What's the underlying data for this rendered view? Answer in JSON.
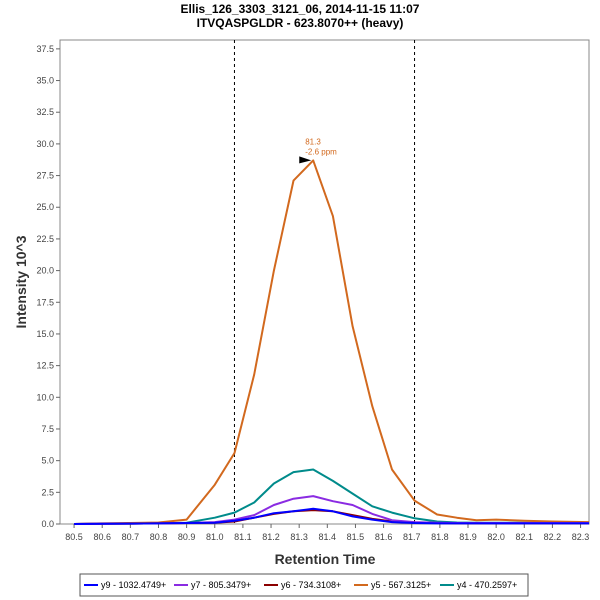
{
  "chart_data": {
    "type": "line",
    "title": "Ellis_126_3303_3121_06, 2014-11-15 11:07",
    "subtitle": "ITVQASPGLDR - 623.8070++ (heavy)",
    "xlabel": "Retention Time",
    "ylabel": "Intensity 10^3",
    "xlim": [
      80.45,
      82.33
    ],
    "ylim": [
      0,
      38.2
    ],
    "xticks": [
      "80.5",
      "80.6",
      "80.7",
      "80.8",
      "80.9",
      "81.0",
      "81.1",
      "81.2",
      "81.3",
      "81.4",
      "81.5",
      "81.6",
      "81.7",
      "81.8",
      "81.9",
      "82.0",
      "82.1",
      "82.2",
      "82.3"
    ],
    "yticks": [
      "0.0",
      "2.5",
      "5.0",
      "7.5",
      "10.0",
      "12.5",
      "15.0",
      "17.5",
      "20.0",
      "22.5",
      "25.0",
      "27.5",
      "30.0",
      "32.5",
      "35.0",
      "37.5"
    ],
    "vlines": [
      81.07,
      81.71
    ],
    "annotation": {
      "x": 81.35,
      "y": 28.7,
      "line1": "81.3",
      "line2": "-2.6 ppm",
      "color": "#d2691e"
    },
    "x": [
      80.5,
      80.6,
      80.7,
      80.8,
      80.9,
      81.0,
      81.07,
      81.14,
      81.21,
      81.28,
      81.35,
      81.42,
      81.49,
      81.56,
      81.63,
      81.71,
      81.79,
      81.86,
      81.93,
      82.0,
      82.1,
      82.2,
      82.33
    ],
    "series": [
      {
        "name": "y9 - 1032.4749+",
        "color": "#0000ff",
        "values": [
          0.0,
          0.02,
          0.03,
          0.05,
          0.08,
          0.1,
          0.25,
          0.5,
          0.85,
          1.0,
          1.2,
          1.0,
          0.6,
          0.35,
          0.15,
          0.08,
          0.05,
          0.05,
          0.05,
          0.05,
          0.05,
          0.05,
          0.05
        ]
      },
      {
        "name": "y7 - 805.3479+",
        "color": "#8a2be2",
        "values": [
          0.0,
          0.02,
          0.03,
          0.05,
          0.08,
          0.15,
          0.35,
          0.7,
          1.5,
          2.0,
          2.2,
          1.8,
          1.5,
          0.8,
          0.3,
          0.15,
          0.1,
          0.08,
          0.08,
          0.08,
          0.08,
          0.08,
          0.08
        ]
      },
      {
        "name": "y6 - 734.3108+",
        "color": "#8b0000",
        "values": [
          0.0,
          0.02,
          0.03,
          0.05,
          0.08,
          0.1,
          0.2,
          0.5,
          0.8,
          1.0,
          1.1,
          1.0,
          0.7,
          0.4,
          0.2,
          0.1,
          0.08,
          0.05,
          0.05,
          0.05,
          0.05,
          0.05,
          0.05
        ]
      },
      {
        "name": "y5 - 567.3125+",
        "color": "#d2691e",
        "values": [
          0.0,
          0.05,
          0.08,
          0.12,
          0.35,
          3.1,
          5.6,
          11.8,
          20.0,
          27.1,
          28.7,
          24.3,
          15.6,
          9.3,
          4.3,
          1.85,
          0.75,
          0.5,
          0.3,
          0.35,
          0.25,
          0.2,
          0.15
        ]
      },
      {
        "name": "y4 - 470.2597+",
        "color": "#008b8b",
        "values": [
          0.0,
          0.02,
          0.03,
          0.05,
          0.1,
          0.5,
          0.9,
          1.7,
          3.2,
          4.1,
          4.3,
          3.4,
          2.4,
          1.4,
          0.9,
          0.45,
          0.2,
          0.12,
          0.1,
          0.1,
          0.1,
          0.1,
          0.1
        ]
      }
    ]
  }
}
